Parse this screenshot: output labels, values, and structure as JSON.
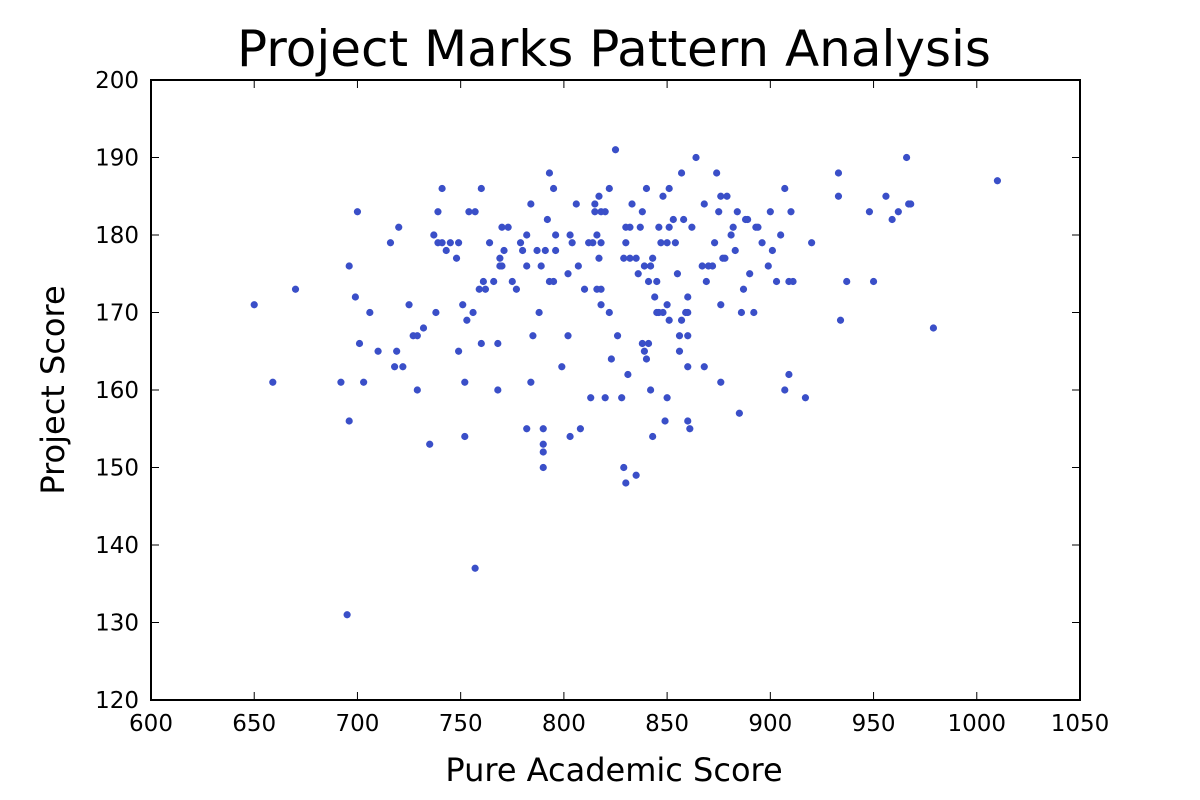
{
  "chart_data": {
    "type": "scatter",
    "title": "Project Marks Pattern Analysis",
    "xlabel": "Pure Academic Score",
    "ylabel": "Project Score",
    "xlim": [
      600,
      1050
    ],
    "ylim": [
      120,
      200
    ],
    "xticks": [
      600,
      650,
      700,
      750,
      800,
      850,
      900,
      950,
      1000,
      1050
    ],
    "yticks": [
      120,
      130,
      140,
      150,
      160,
      170,
      180,
      190,
      200
    ],
    "grid": false,
    "marker_color": "#3a4fc8",
    "series": [
      {
        "points": [
          [
            650,
            171
          ],
          [
            659,
            161
          ],
          [
            670,
            173
          ],
          [
            692,
            161
          ],
          [
            695,
            131
          ],
          [
            696,
            156
          ],
          [
            696,
            176
          ],
          [
            699,
            172
          ],
          [
            700,
            183
          ],
          [
            701,
            166
          ],
          [
            703,
            161
          ],
          [
            706,
            170
          ],
          [
            710,
            165
          ],
          [
            716,
            179
          ],
          [
            718,
            163
          ],
          [
            719,
            165
          ],
          [
            720,
            181
          ],
          [
            722,
            163
          ],
          [
            725,
            171
          ],
          [
            727,
            167
          ],
          [
            729,
            160
          ],
          [
            729,
            167
          ],
          [
            732,
            168
          ],
          [
            735,
            153
          ],
          [
            737,
            180
          ],
          [
            738,
            170
          ],
          [
            739,
            179
          ],
          [
            739,
            183
          ],
          [
            741,
            179
          ],
          [
            741,
            186
          ],
          [
            743,
            178
          ],
          [
            745,
            179
          ],
          [
            748,
            177
          ],
          [
            749,
            165
          ],
          [
            749,
            179
          ],
          [
            751,
            171
          ],
          [
            752,
            154
          ],
          [
            752,
            161
          ],
          [
            753,
            169
          ],
          [
            754,
            183
          ],
          [
            756,
            170
          ],
          [
            757,
            183
          ],
          [
            757,
            137
          ],
          [
            759,
            173
          ],
          [
            760,
            166
          ],
          [
            760,
            186
          ],
          [
            761,
            174
          ],
          [
            762,
            173
          ],
          [
            764,
            179
          ],
          [
            766,
            174
          ],
          [
            768,
            160
          ],
          [
            768,
            166
          ],
          [
            769,
            176
          ],
          [
            769,
            177
          ],
          [
            770,
            181
          ],
          [
            770,
            176
          ],
          [
            771,
            178
          ],
          [
            773,
            181
          ],
          [
            775,
            174
          ],
          [
            777,
            173
          ],
          [
            779,
            179
          ],
          [
            780,
            178
          ],
          [
            782,
            155
          ],
          [
            782,
            176
          ],
          [
            782,
            180
          ],
          [
            784,
            184
          ],
          [
            784,
            161
          ],
          [
            785,
            167
          ],
          [
            787,
            178
          ],
          [
            788,
            170
          ],
          [
            789,
            176
          ],
          [
            790,
            153
          ],
          [
            790,
            152
          ],
          [
            790,
            150
          ],
          [
            790,
            155
          ],
          [
            791,
            178
          ],
          [
            792,
            182
          ],
          [
            793,
            188
          ],
          [
            793,
            174
          ],
          [
            795,
            174
          ],
          [
            795,
            186
          ],
          [
            796,
            178
          ],
          [
            796,
            180
          ],
          [
            799,
            163
          ],
          [
            802,
            167
          ],
          [
            802,
            175
          ],
          [
            803,
            154
          ],
          [
            803,
            180
          ],
          [
            804,
            179
          ],
          [
            806,
            184
          ],
          [
            807,
            176
          ],
          [
            808,
            155
          ],
          [
            810,
            173
          ],
          [
            812,
            179
          ],
          [
            813,
            159
          ],
          [
            814,
            179
          ],
          [
            815,
            183
          ],
          [
            815,
            184
          ],
          [
            816,
            180
          ],
          [
            816,
            173
          ],
          [
            817,
            177
          ],
          [
            817,
            185
          ],
          [
            818,
            183
          ],
          [
            818,
            171
          ],
          [
            818,
            179
          ],
          [
            818,
            173
          ],
          [
            820,
            183
          ],
          [
            820,
            159
          ],
          [
            822,
            170
          ],
          [
            822,
            186
          ],
          [
            823,
            164
          ],
          [
            825,
            191
          ],
          [
            826,
            167
          ],
          [
            828,
            159
          ],
          [
            829,
            177
          ],
          [
            829,
            150
          ],
          [
            830,
            148
          ],
          [
            830,
            179
          ],
          [
            830,
            181
          ],
          [
            831,
            162
          ],
          [
            832,
            181
          ],
          [
            832,
            177
          ],
          [
            833,
            184
          ],
          [
            835,
            177
          ],
          [
            835,
            149
          ],
          [
            836,
            175
          ],
          [
            837,
            181
          ],
          [
            838,
            183
          ],
          [
            838,
            166
          ],
          [
            839,
            176
          ],
          [
            839,
            165
          ],
          [
            840,
            164
          ],
          [
            840,
            186
          ],
          [
            841,
            174
          ],
          [
            841,
            166
          ],
          [
            842,
            176
          ],
          [
            842,
            160
          ],
          [
            843,
            154
          ],
          [
            843,
            177
          ],
          [
            844,
            172
          ],
          [
            845,
            174
          ],
          [
            845,
            170
          ],
          [
            846,
            181
          ],
          [
            846,
            170
          ],
          [
            847,
            179
          ],
          [
            848,
            185
          ],
          [
            848,
            170
          ],
          [
            849,
            156
          ],
          [
            850,
            159
          ],
          [
            850,
            171
          ],
          [
            850,
            179
          ],
          [
            851,
            186
          ],
          [
            851,
            169
          ],
          [
            851,
            181
          ],
          [
            853,
            182
          ],
          [
            854,
            179
          ],
          [
            855,
            175
          ],
          [
            856,
            165
          ],
          [
            856,
            167
          ],
          [
            857,
            188
          ],
          [
            857,
            169
          ],
          [
            858,
            182
          ],
          [
            859,
            170
          ],
          [
            860,
            167
          ],
          [
            860,
            163
          ],
          [
            860,
            172
          ],
          [
            860,
            156
          ],
          [
            860,
            170
          ],
          [
            861,
            155
          ],
          [
            862,
            181
          ],
          [
            864,
            190
          ],
          [
            867,
            176
          ],
          [
            868,
            163
          ],
          [
            868,
            184
          ],
          [
            869,
            174
          ],
          [
            870,
            176
          ],
          [
            872,
            176
          ],
          [
            873,
            179
          ],
          [
            874,
            188
          ],
          [
            875,
            183
          ],
          [
            876,
            185
          ],
          [
            876,
            161
          ],
          [
            876,
            171
          ],
          [
            877,
            177
          ],
          [
            878,
            177
          ],
          [
            879,
            185
          ],
          [
            881,
            180
          ],
          [
            882,
            181
          ],
          [
            883,
            178
          ],
          [
            884,
            183
          ],
          [
            885,
            157
          ],
          [
            886,
            170
          ],
          [
            887,
            173
          ],
          [
            888,
            182
          ],
          [
            889,
            182
          ],
          [
            890,
            175
          ],
          [
            892,
            170
          ],
          [
            893,
            181
          ],
          [
            894,
            181
          ],
          [
            896,
            179
          ],
          [
            899,
            176
          ],
          [
            900,
            183
          ],
          [
            901,
            178
          ],
          [
            903,
            174
          ],
          [
            905,
            180
          ],
          [
            907,
            186
          ],
          [
            907,
            160
          ],
          [
            909,
            162
          ],
          [
            909,
            174
          ],
          [
            910,
            183
          ],
          [
            911,
            174
          ],
          [
            917,
            159
          ],
          [
            920,
            179
          ],
          [
            933,
            188
          ],
          [
            933,
            185
          ],
          [
            934,
            169
          ],
          [
            937,
            174
          ],
          [
            948,
            183
          ],
          [
            950,
            174
          ],
          [
            956,
            185
          ],
          [
            959,
            182
          ],
          [
            962,
            183
          ],
          [
            966,
            190
          ],
          [
            967,
            184
          ],
          [
            968,
            184
          ],
          [
            979,
            168
          ],
          [
            1010,
            187
          ]
        ]
      }
    ]
  }
}
